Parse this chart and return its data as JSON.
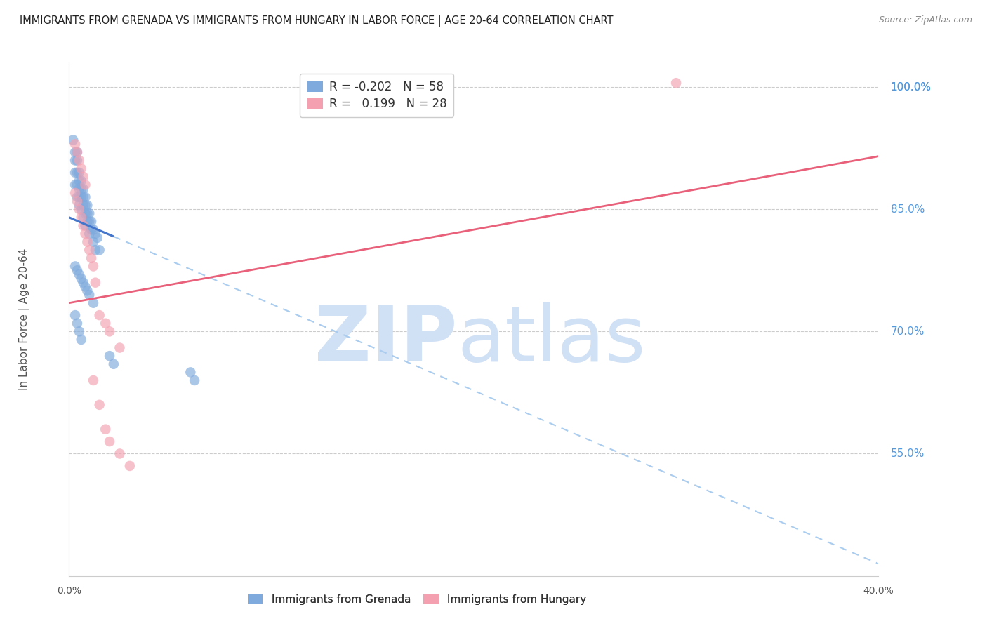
{
  "title": "IMMIGRANTS FROM GRENADA VS IMMIGRANTS FROM HUNGARY IN LABOR FORCE | AGE 20-64 CORRELATION CHART",
  "source": "Source: ZipAtlas.com",
  "ylabel": "In Labor Force | Age 20-64",
  "xlim": [
    0.0,
    0.4
  ],
  "ylim": [
    0.4,
    1.03
  ],
  "xticks": [
    0.0,
    0.4
  ],
  "xticklabels": [
    "0.0%",
    "40.0%"
  ],
  "yticks": [
    0.55,
    0.7,
    0.85,
    1.0
  ],
  "yticklabels": [
    "55.0%",
    "70.0%",
    "85.0%",
    "100.0%"
  ],
  "grenada_color": "#7faadd",
  "hungary_color": "#f4a0b0",
  "grenada_R": -0.202,
  "grenada_N": 58,
  "hungary_R": 0.199,
  "hungary_N": 28,
  "background_color": "#ffffff",
  "grid_color": "#cccccc",
  "title_color": "#222222",
  "right_tick_color": "#5599dd",
  "watermark_color": "#d0e0f5",
  "grenada_x": [
    0.002,
    0.003,
    0.003,
    0.003,
    0.003,
    0.004,
    0.004,
    0.004,
    0.004,
    0.004,
    0.005,
    0.005,
    0.005,
    0.005,
    0.005,
    0.006,
    0.006,
    0.006,
    0.006,
    0.007,
    0.007,
    0.007,
    0.007,
    0.008,
    0.008,
    0.008,
    0.008,
    0.009,
    0.009,
    0.009,
    0.01,
    0.01,
    0.01,
    0.011,
    0.011,
    0.012,
    0.012,
    0.013,
    0.013,
    0.014,
    0.015,
    0.003,
    0.004,
    0.005,
    0.006,
    0.007,
    0.008,
    0.009,
    0.01,
    0.012,
    0.003,
    0.004,
    0.005,
    0.006,
    0.02,
    0.022,
    0.06,
    0.062
  ],
  "grenada_y": [
    0.935,
    0.92,
    0.91,
    0.895,
    0.88,
    0.92,
    0.91,
    0.895,
    0.88,
    0.865,
    0.895,
    0.885,
    0.875,
    0.865,
    0.855,
    0.885,
    0.875,
    0.865,
    0.85,
    0.875,
    0.865,
    0.855,
    0.84,
    0.865,
    0.855,
    0.845,
    0.83,
    0.855,
    0.845,
    0.835,
    0.845,
    0.835,
    0.82,
    0.835,
    0.825,
    0.825,
    0.81,
    0.82,
    0.8,
    0.815,
    0.8,
    0.78,
    0.775,
    0.77,
    0.765,
    0.76,
    0.755,
    0.75,
    0.745,
    0.735,
    0.72,
    0.71,
    0.7,
    0.69,
    0.67,
    0.66,
    0.65,
    0.64
  ],
  "hungary_x": [
    0.003,
    0.004,
    0.005,
    0.006,
    0.007,
    0.008,
    0.003,
    0.004,
    0.005,
    0.006,
    0.007,
    0.008,
    0.009,
    0.01,
    0.011,
    0.012,
    0.013,
    0.015,
    0.018,
    0.02,
    0.025,
    0.012,
    0.015,
    0.018,
    0.02,
    0.025,
    0.03,
    0.3
  ],
  "hungary_y": [
    0.93,
    0.92,
    0.91,
    0.9,
    0.89,
    0.88,
    0.87,
    0.86,
    0.85,
    0.84,
    0.83,
    0.82,
    0.81,
    0.8,
    0.79,
    0.78,
    0.76,
    0.72,
    0.71,
    0.7,
    0.68,
    0.64,
    0.61,
    0.58,
    0.565,
    0.55,
    0.535,
    1.005
  ],
  "trend_grenada_x0": 0.0,
  "trend_grenada_x1": 0.4,
  "trend_grenada_y0": 0.84,
  "trend_grenada_y1": 0.415,
  "trend_grenada_solid_end": 0.022,
  "trend_hungary_x0": 0.0,
  "trend_hungary_x1": 0.4,
  "trend_hungary_y0": 0.735,
  "trend_hungary_y1": 0.915
}
